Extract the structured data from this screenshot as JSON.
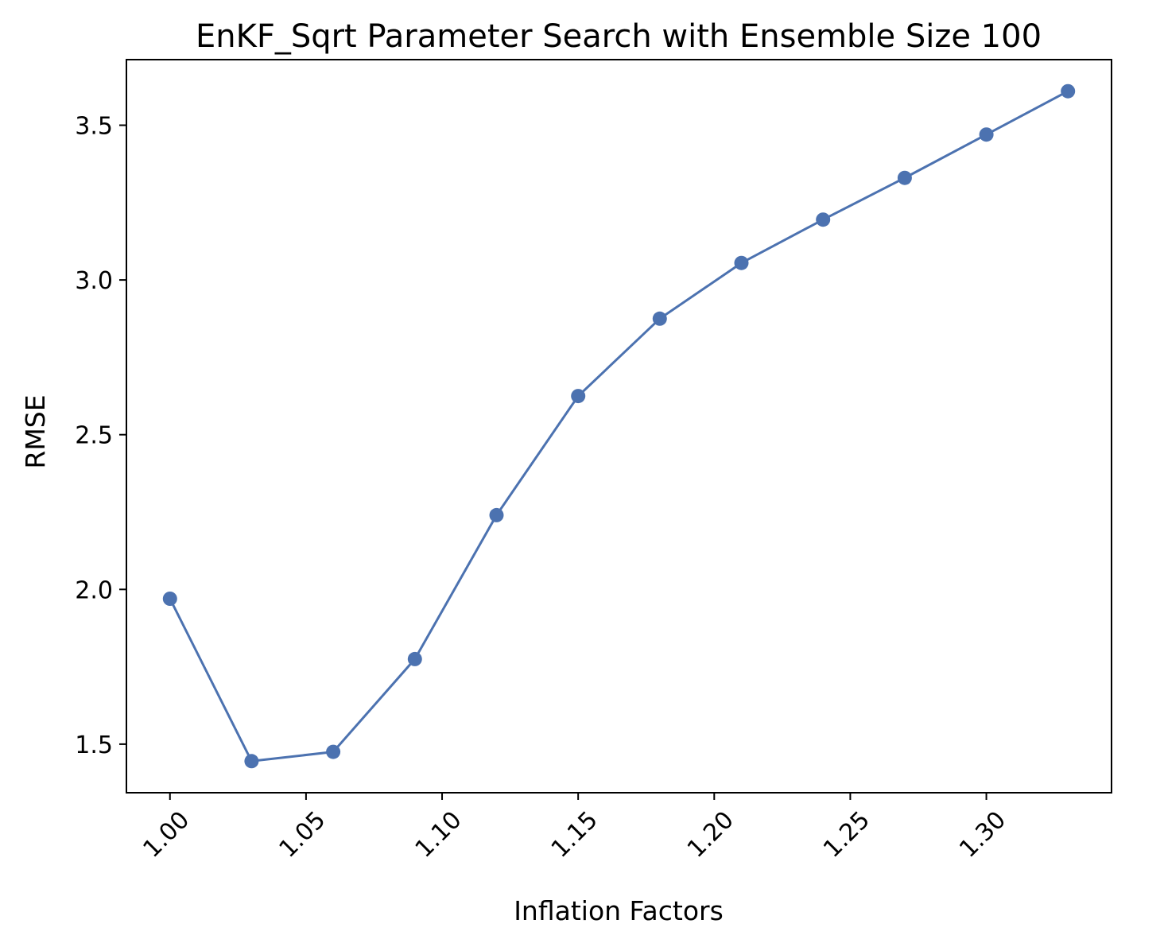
{
  "chart_data": {
    "type": "line",
    "title": "EnKF_Sqrt Parameter Search with Ensemble Size 100",
    "xlabel": "Inflation Factors",
    "ylabel": "RMSE",
    "x": [
      1.0,
      1.03,
      1.06,
      1.09,
      1.12,
      1.15,
      1.18,
      1.21,
      1.24,
      1.27,
      1.3,
      1.33
    ],
    "series": [
      {
        "values": [
          1.97,
          1.445,
          1.475,
          1.775,
          2.24,
          2.625,
          2.875,
          3.055,
          3.195,
          3.33,
          3.47,
          3.61
        ]
      }
    ],
    "xlim": [
      0.984,
      1.346
    ],
    "ylim": [
      1.343,
      3.712
    ],
    "xticks": [
      "1.00",
      "1.05",
      "1.10",
      "1.15",
      "1.20",
      "1.25",
      "1.30"
    ],
    "yticks": [
      "1.5",
      "2.0",
      "2.5",
      "3.0",
      "3.5"
    ],
    "grid": false,
    "marker": "circle",
    "line_color": "#4c72b0"
  }
}
